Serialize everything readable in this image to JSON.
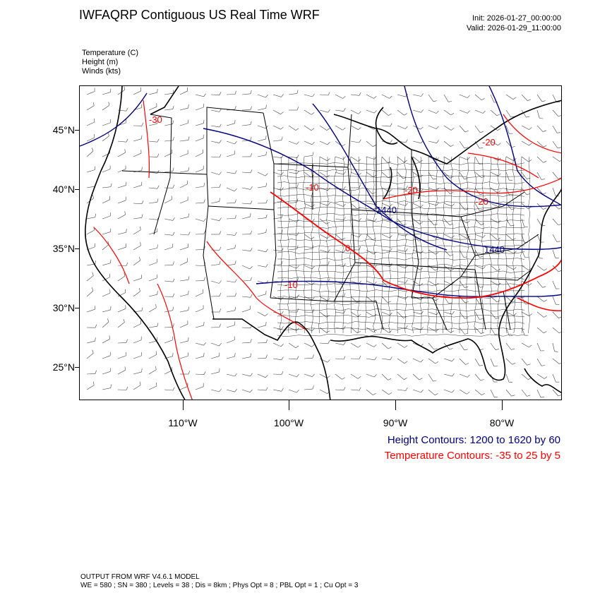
{
  "header": {
    "title": "IWFAQRP Contiguous US Real Time WRF",
    "init": "Init: 2026-01-27_00:00:00",
    "valid": "Valid: 2026-01-29_11:00:00"
  },
  "fields": {
    "temperature": "Temperature   (C)",
    "height": "Height   (m)",
    "winds": "Winds   (kts)"
  },
  "axes": {
    "lat_labels": [
      "45°N",
      "40°N",
      "35°N",
      "30°N",
      "25°N"
    ],
    "lon_labels": [
      "110°W",
      "100°W",
      "90°W",
      "80°W"
    ]
  },
  "contour_labels": {
    "height": [
      "1440",
      "1440"
    ],
    "temperature": [
      "-10",
      "-20",
      "-20",
      "-20",
      "-30",
      "0",
      "-10"
    ]
  },
  "legend": {
    "height": "Height Contours: 1200 to 1620 by 60",
    "temperature": "Temperature Contours: -35 to 25 by 5"
  },
  "footer": {
    "line1": "OUTPUT FROM WRF V4.6.1 MODEL",
    "line2": "WE = 580 ; SN = 380 ; Levels = 38 ; Dis = 8km ; Phys Opt = 8 ; PBL Opt = 1 ; Cu Opt = 3"
  },
  "colors": {
    "height_contour": "#000080",
    "temperature_contour": "#ff0000",
    "wind_barb": "#444444"
  }
}
